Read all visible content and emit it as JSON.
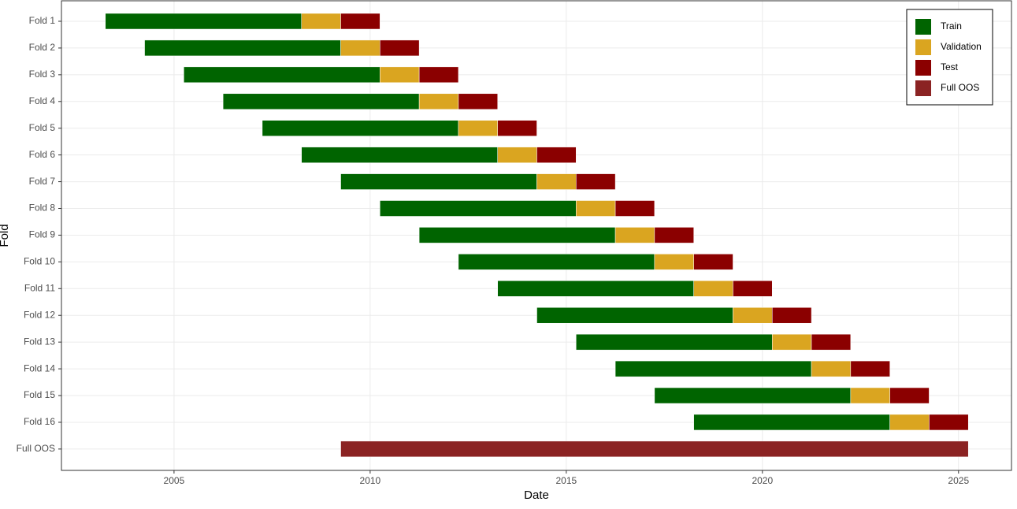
{
  "chart_data": {
    "type": "gantt",
    "x_label": "Date",
    "y_label": "Fold",
    "categories": [
      "Fold 1",
      "Fold 2",
      "Fold 3",
      "Fold 4",
      "Fold 5",
      "Fold 6",
      "Fold 7",
      "Fold 8",
      "Fold 9",
      "Fold 10",
      "Fold 11",
      "Fold 12",
      "Fold 13",
      "Fold 14",
      "Fold 15",
      "Fold 16",
      "Full OOS"
    ],
    "series": [
      {
        "name": "Train",
        "color": "#006400",
        "start": [
          2003.25,
          2004.25,
          2005.25,
          2006.25,
          2007.25,
          2008.25,
          2009.25,
          2010.25,
          2011.25,
          2012.25,
          2013.25,
          2014.25,
          2015.25,
          2016.25,
          2017.25,
          2018.25,
          null
        ],
        "end": [
          2008.25,
          2009.25,
          2010.25,
          2011.25,
          2012.25,
          2013.25,
          2014.25,
          2015.25,
          2016.25,
          2017.25,
          2018.25,
          2019.25,
          2020.25,
          2021.25,
          2022.25,
          2023.25,
          null
        ]
      },
      {
        "name": "Validation",
        "color": "#DAA520",
        "start": [
          2008.25,
          2009.25,
          2010.25,
          2011.25,
          2012.25,
          2013.25,
          2014.25,
          2015.25,
          2016.25,
          2017.25,
          2018.25,
          2019.25,
          2020.25,
          2021.25,
          2022.25,
          2023.25,
          null
        ],
        "end": [
          2009.25,
          2010.25,
          2011.25,
          2012.25,
          2013.25,
          2014.25,
          2015.25,
          2016.25,
          2017.25,
          2018.25,
          2019.25,
          2020.25,
          2021.25,
          2022.25,
          2023.25,
          2024.25,
          null
        ]
      },
      {
        "name": "Test",
        "color": "#8B0000",
        "start": [
          2009.25,
          2010.25,
          2011.25,
          2012.25,
          2013.25,
          2014.25,
          2015.25,
          2016.25,
          2017.25,
          2018.25,
          2019.25,
          2020.25,
          2021.25,
          2022.25,
          2023.25,
          2024.25,
          null
        ],
        "end": [
          2010.25,
          2011.25,
          2012.25,
          2013.25,
          2014.25,
          2015.25,
          2016.25,
          2017.25,
          2018.25,
          2019.25,
          2020.25,
          2021.25,
          2022.25,
          2023.25,
          2024.25,
          2025.25,
          null
        ]
      },
      {
        "name": "Full OOS",
        "color": "#8B2323",
        "start": [
          null,
          null,
          null,
          null,
          null,
          null,
          null,
          null,
          null,
          null,
          null,
          null,
          null,
          null,
          null,
          null,
          2009.25
        ],
        "end": [
          null,
          null,
          null,
          null,
          null,
          null,
          null,
          null,
          null,
          null,
          null,
          null,
          null,
          null,
          null,
          null,
          2025.25
        ]
      }
    ],
    "xlim": [
      2002.13,
      2026.35
    ],
    "xticks": [
      2005,
      2010,
      2015,
      2020,
      2025
    ],
    "grid": true,
    "legend": "top-right"
  }
}
